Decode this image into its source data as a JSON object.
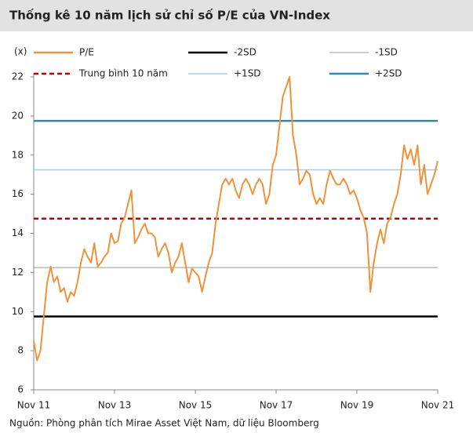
{
  "chart_data": {
    "type": "line",
    "title": "Thống kê 10 năm lịch sử chỉ số P/E của VN-Index",
    "y_unit": "(x)",
    "source": "Nguồn: Phòng phân tích Mirae Asset Việt Nam, dữ liệu Bloomberg",
    "categories": [
      "Nov 11",
      null,
      null,
      null,
      null,
      null,
      null,
      null,
      null,
      null,
      null,
      null,
      null,
      null,
      null,
      null,
      null,
      null,
      null,
      null,
      null,
      null,
      null,
      null,
      "Nov 13",
      null,
      null,
      null,
      null,
      null,
      null,
      null,
      null,
      null,
      null,
      null,
      null,
      null,
      null,
      null,
      null,
      null,
      null,
      null,
      null,
      null,
      null,
      null,
      "Nov 15",
      null,
      null,
      null,
      null,
      null,
      null,
      null,
      null,
      null,
      null,
      null,
      null,
      null,
      null,
      null,
      null,
      null,
      null,
      null,
      null,
      null,
      null,
      null,
      "Nov 17",
      null,
      null,
      null,
      null,
      null,
      null,
      null,
      null,
      null,
      null,
      null,
      null,
      null,
      null,
      null,
      null,
      null,
      null,
      null,
      null,
      null,
      null,
      null,
      "Nov 19",
      null,
      null,
      null,
      null,
      null,
      null,
      null,
      null,
      null,
      null,
      null,
      null,
      null,
      null,
      null,
      null,
      null,
      null,
      null,
      null,
      null,
      null,
      null,
      "Nov 21"
    ],
    "series": [
      {
        "name": "P/E",
        "color": "#f0923a",
        "values": [
          8.5,
          7.5,
          8.0,
          9.8,
          11.5,
          12.3,
          11.5,
          11.8,
          11.0,
          11.2,
          10.5,
          11.0,
          10.8,
          11.5,
          12.5,
          13.2,
          12.8,
          12.5,
          13.5,
          12.3,
          12.5,
          12.8,
          13.0,
          14.0,
          13.5,
          13.6,
          14.5,
          14.8,
          15.5,
          16.2,
          13.5,
          13.8,
          14.2,
          14.5,
          14.0,
          14.0,
          13.8,
          12.8,
          13.2,
          13.5,
          13.0,
          12.0,
          12.5,
          12.8,
          13.5,
          12.5,
          11.5,
          12.2,
          12.0,
          11.8,
          11.0,
          11.8,
          12.5,
          13.0,
          14.5,
          15.5,
          16.5,
          16.8,
          16.5,
          16.8,
          16.2,
          15.8,
          16.5,
          16.8,
          16.5,
          16.0,
          16.5,
          16.8,
          16.5,
          15.5,
          16.0,
          17.5,
          18.0,
          19.5,
          21.0,
          21.5,
          22.0,
          19.0,
          18.0,
          16.5,
          16.8,
          17.2,
          17.0,
          16.0,
          15.5,
          15.8,
          15.5,
          16.5,
          17.2,
          16.8,
          16.5,
          16.5,
          16.8,
          16.5,
          16.0,
          16.2,
          15.8,
          15.2,
          14.8,
          14.0,
          11.0,
          12.5,
          13.5,
          14.2,
          13.5,
          14.5,
          14.8,
          15.5,
          16.0,
          17.0,
          18.5,
          17.8,
          18.3,
          17.5,
          18.5,
          16.5,
          17.5,
          16.0,
          16.5,
          17.0,
          17.7
        ]
      }
    ],
    "reference_lines": [
      {
        "name": "-2SD",
        "value": 9.75,
        "color": "#000000",
        "width": 2.5
      },
      {
        "name": "-1SD",
        "value": 12.25,
        "color": "#999999",
        "width": 1
      },
      {
        "name": "Trung bình 10 năm",
        "value": 14.75,
        "color": "#c00000",
        "width": 2.5,
        "dashed": true
      },
      {
        "name": "+1SD",
        "value": 17.25,
        "color": "#9dd3e8",
        "width": 1.5
      },
      {
        "name": "+2SD",
        "value": 19.75,
        "color": "#2a8aa8",
        "width": 2.5
      }
    ],
    "ylim": [
      6,
      22
    ],
    "yticks": [
      6,
      8,
      10,
      12,
      14,
      16,
      18,
      20,
      22
    ]
  }
}
